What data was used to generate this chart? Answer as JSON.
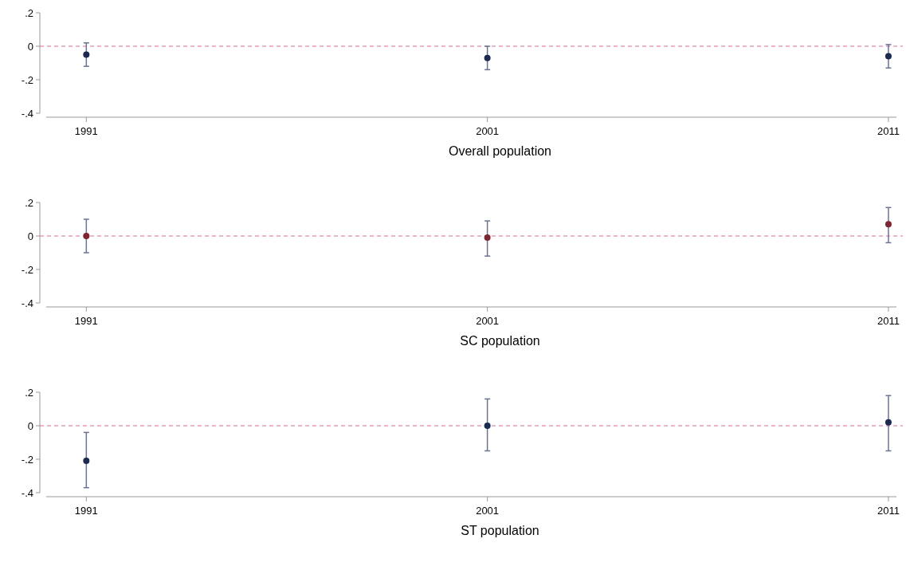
{
  "chart_data": [
    {
      "type": "scatter",
      "xlabel": "Overall population",
      "x": [
        1991,
        2001,
        2011
      ],
      "xlim": [
        1990,
        2011.2
      ],
      "xticks": [
        1991,
        2001,
        2011
      ],
      "ylim": [
        -0.4,
        0.2
      ],
      "yticks": [
        {
          "value": -0.4,
          "label": "-.4"
        },
        {
          "value": -0.2,
          "label": "-.2"
        },
        {
          "value": 0,
          "label": "0"
        },
        {
          "value": 0.2,
          "label": ".2"
        }
      ],
      "marker": "circle",
      "series": [
        {
          "color": "#1c2a4f",
          "values": [
            -0.05,
            -0.07,
            -0.06
          ],
          "errors": [
            [
              -0.12,
              0.02
            ],
            [
              -0.14,
              0.0
            ],
            [
              -0.13,
              0.01
            ]
          ]
        }
      ],
      "ref_lines": [
        {
          "axis": "y",
          "value": 0,
          "color": "#d46a9a",
          "line_style": "dashed"
        }
      ]
    },
    {
      "type": "scatter",
      "xlabel": "SC population",
      "x": [
        1991,
        2001,
        2011
      ],
      "xlim": [
        1990,
        2011.2
      ],
      "xticks": [
        1991,
        2001,
        2011
      ],
      "ylim": [
        -0.4,
        0.2
      ],
      "yticks": [
        {
          "value": -0.4,
          "label": "-.4"
        },
        {
          "value": -0.2,
          "label": "-.2"
        },
        {
          "value": 0,
          "label": "0"
        },
        {
          "value": 0.2,
          "label": ".2"
        }
      ],
      "marker": "circle",
      "series": [
        {
          "color": "#7b2630",
          "values": [
            0.0,
            -0.01,
            0.07
          ],
          "errors": [
            [
              -0.1,
              0.1
            ],
            [
              -0.12,
              0.09
            ],
            [
              -0.04,
              0.17
            ]
          ]
        }
      ],
      "ref_lines": [
        {
          "axis": "y",
          "value": 0,
          "color": "#d46a9a",
          "line_style": "dashed"
        }
      ]
    },
    {
      "type": "scatter",
      "xlabel": "ST population",
      "x": [
        1991,
        2001,
        2011
      ],
      "xlim": [
        1990,
        2011.2
      ],
      "xticks": [
        1991,
        2001,
        2011
      ],
      "ylim": [
        -0.4,
        0.2
      ],
      "yticks": [
        {
          "value": -0.4,
          "label": "-.4"
        },
        {
          "value": -0.2,
          "label": "-.2"
        },
        {
          "value": 0,
          "label": "0"
        },
        {
          "value": 0.2,
          "label": ".2"
        }
      ],
      "marker": "circle",
      "series": [
        {
          "color": "#1c2a4f",
          "values": [
            -0.21,
            0.0,
            0.02
          ],
          "errors": [
            [
              -0.37,
              -0.04
            ],
            [
              -0.15,
              0.16
            ],
            [
              -0.15,
              0.18
            ]
          ]
        }
      ],
      "ref_lines": [
        {
          "axis": "y",
          "value": 0,
          "color": "#d46a9a",
          "line_style": "dashed"
        }
      ]
    }
  ]
}
